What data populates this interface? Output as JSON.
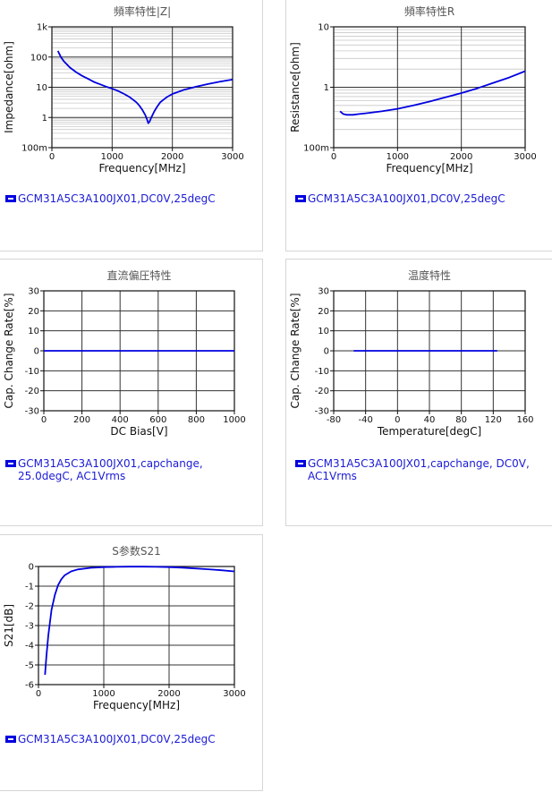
{
  "panels": [
    {
      "legend": "GCM31A5C3A100JX01,DC0V,25degC",
      "chart_data": {
        "type": "line",
        "title": "頻率特性|Z|",
        "xlabel": "Frequency[MHz]",
        "ylabel": "Impedance[ohm]",
        "xlim": [
          0,
          3000
        ],
        "ylim": [
          0.1,
          1000
        ],
        "yscale": "log",
        "xticks": [
          0,
          1000,
          2000,
          3000
        ],
        "xtick_labels": [
          "0",
          "1000",
          "2000",
          "3000"
        ],
        "yticks": [
          0.1,
          1,
          10,
          100,
          1000
        ],
        "ytick_labels": [
          "100m",
          "1",
          "10",
          "100",
          "1k"
        ],
        "grid": true,
        "series": [
          {
            "color": "#0000e0",
            "x": [
              100,
              150,
              200,
              300,
              400,
              500,
              600,
              700,
              800,
              900,
              1000,
              1100,
              1200,
              1300,
              1400,
              1450,
              1500,
              1550,
              1580,
              1600,
              1620,
              1650,
              1700,
              1750,
              1800,
              1900,
              2000,
              2200,
              2400,
              2600,
              2800,
              3000
            ],
            "y": [
              160,
              100,
              72,
              45,
              32,
              24,
              19,
              15,
              12.5,
              10.5,
              9,
              7.5,
              6,
              4.6,
              3.2,
              2.5,
              1.8,
              1.2,
              0.85,
              0.65,
              0.72,
              1.0,
              1.6,
              2.3,
              3.2,
              4.6,
              6,
              8.3,
              10.5,
              13,
              15.5,
              18
            ]
          }
        ]
      }
    },
    {
      "legend": "GCM31A5C3A100JX01,DC0V,25degC",
      "chart_data": {
        "type": "line",
        "title": "頻率特性R",
        "xlabel": "Frequency[MHz]",
        "ylabel": "Resistance[ohm]",
        "xlim": [
          0,
          3000
        ],
        "ylim": [
          0.1,
          10
        ],
        "yscale": "log",
        "xticks": [
          0,
          1000,
          2000,
          3000
        ],
        "xtick_labels": [
          "0",
          "1000",
          "2000",
          "3000"
        ],
        "yticks": [
          0.1,
          1,
          10
        ],
        "ytick_labels": [
          "100m",
          "1",
          "10"
        ],
        "grid": true,
        "series": [
          {
            "color": "#0000e0",
            "x": [
              100,
              150,
              200,
              300,
              400,
              500,
              750,
              1000,
              1250,
              1500,
              1750,
              2000,
              2250,
              2500,
              2750,
              3000
            ],
            "y": [
              0.4,
              0.36,
              0.35,
              0.35,
              0.36,
              0.37,
              0.4,
              0.44,
              0.5,
              0.58,
              0.68,
              0.8,
              0.96,
              1.18,
              1.45,
              1.85
            ]
          }
        ]
      }
    },
    {
      "legend": "GCM31A5C3A100JX01,capchange,\n25.0degC, AC1Vrms",
      "chart_data": {
        "type": "line",
        "title": "直流偏圧特性",
        "xlabel": "DC Bias[V]",
        "ylabel": "Cap. Change Rate[%]",
        "xlim": [
          0,
          1000
        ],
        "ylim": [
          -30,
          30
        ],
        "yscale": "linear",
        "xticks": [
          0,
          200,
          400,
          600,
          800,
          1000
        ],
        "xtick_labels": [
          "0",
          "200",
          "400",
          "600",
          "800",
          "1000"
        ],
        "yticks": [
          -30,
          -20,
          -10,
          0,
          10,
          20,
          30
        ],
        "ytick_labels": [
          "-30",
          "-20",
          "-10",
          "0",
          "10",
          "20",
          "30"
        ],
        "grid": true,
        "series": [
          {
            "color": "#0000e0",
            "x": [
              0,
              1000
            ],
            "y": [
              0,
              0
            ]
          }
        ]
      }
    },
    {
      "legend": "GCM31A5C3A100JX01,capchange, DC0V,\nAC1Vrms",
      "chart_data": {
        "type": "line",
        "title": "温度特性",
        "xlabel": "Temperature[degC]",
        "ylabel": "Cap. Change Rate[%]",
        "xlim": [
          -80,
          160
        ],
        "ylim": [
          -30,
          30
        ],
        "yscale": "linear",
        "xticks": [
          -80,
          -40,
          0,
          40,
          80,
          120,
          160
        ],
        "xtick_labels": [
          "-80",
          "-40",
          "0",
          "40",
          "80",
          "120",
          "160"
        ],
        "yticks": [
          -30,
          -20,
          -10,
          0,
          10,
          20,
          30
        ],
        "ytick_labels": [
          "-30",
          "-20",
          "-10",
          "0",
          "10",
          "20",
          "30"
        ],
        "grid": true,
        "series": [
          {
            "color": "#0000e0",
            "x": [
              -55,
              125
            ],
            "y": [
              0,
              0
            ]
          }
        ]
      }
    },
    {
      "legend": "GCM31A5C3A100JX01,DC0V,25degC",
      "chart_data": {
        "type": "line",
        "title": "S参数S21",
        "xlabel": "Frequency[MHz]",
        "ylabel": "S21[dB]",
        "xlim": [
          0,
          3000
        ],
        "ylim": [
          -6,
          0
        ],
        "yscale": "linear",
        "xticks": [
          0,
          1000,
          2000,
          3000
        ],
        "xtick_labels": [
          "0",
          "1000",
          "2000",
          "3000"
        ],
        "yticks": [
          -6,
          -5,
          -4,
          -3,
          -2,
          -1,
          0
        ],
        "ytick_labels": [
          "-6",
          "-5",
          "-4",
          "-3",
          "-2",
          "-1",
          "0"
        ],
        "grid": true,
        "series": [
          {
            "color": "#0000e0",
            "x": [
              100,
              120,
              150,
              200,
              250,
              300,
              350,
              400,
              500,
              600,
              800,
              1000,
              1200,
              1400,
              1600,
              1800,
              2000,
              2200,
              2400,
              2600,
              2800,
              3000
            ],
            "y": [
              -5.5,
              -4.6,
              -3.5,
              -2.2,
              -1.45,
              -0.95,
              -0.65,
              -0.45,
              -0.25,
              -0.15,
              -0.07,
              -0.03,
              -0.02,
              -0.01,
              -0.01,
              -0.02,
              -0.03,
              -0.06,
              -0.1,
              -0.14,
              -0.19,
              -0.25
            ]
          }
        ]
      }
    }
  ]
}
